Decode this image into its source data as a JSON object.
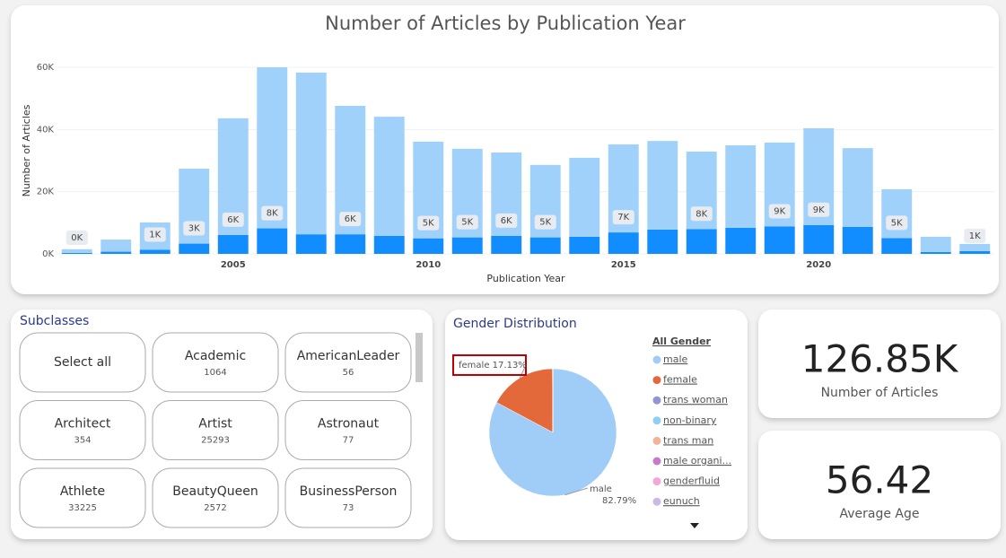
{
  "chart_data": [
    {
      "type": "bar",
      "title": "Number of Articles by Publication Year",
      "x_label": "Publication Year",
      "y_label": "Number of Articles",
      "x": [
        2001,
        2002,
        2003,
        2004,
        2005,
        2006,
        2007,
        2008,
        2009,
        2010,
        2011,
        2012,
        2013,
        2014,
        2015,
        2016,
        2017,
        2018,
        2019,
        2020,
        2021,
        2022,
        2023,
        2024
      ],
      "xlim": [
        2000.5,
        2024.5
      ],
      "xticks": [
        2005,
        2010,
        2015,
        2020
      ],
      "ylim": [
        0,
        61000
      ],
      "yticks": [
        {
          "value": 0,
          "label": "0K"
        },
        {
          "value": 20000,
          "label": "20K"
        },
        {
          "value": 40000,
          "label": "40K"
        },
        {
          "value": 60000,
          "label": "60K"
        }
      ],
      "grid": true,
      "stacked": true,
      "series": [
        {
          "color": "#118dff",
          "values": [
            300,
            700,
            1300,
            3300,
            6100,
            8200,
            6300,
            6300,
            5800,
            5000,
            5300,
            5800,
            5300,
            5500,
            6900,
            7800,
            8000,
            8400,
            8800,
            9300,
            8700,
            5100,
            600,
            900
          ],
          "value_labels": [
            "0K",
            null,
            "1K",
            "3K",
            "6K",
            "8K",
            null,
            "6K",
            null,
            "5K",
            "5K",
            "6K",
            "5K",
            null,
            "7K",
            null,
            "8K",
            null,
            "9K",
            "9K",
            null,
            "5K",
            null,
            "1K"
          ]
        },
        {
          "color": "#a0d1fb",
          "values": [
            1200,
            3900,
            8800,
            24100,
            37500,
            51800,
            52000,
            41300,
            38300,
            31100,
            28500,
            26800,
            23300,
            25400,
            28300,
            28500,
            24900,
            26500,
            27000,
            31100,
            25300,
            15700,
            4900,
            2300
          ]
        }
      ]
    },
    {
      "type": "pie",
      "title": "Gender Distribution",
      "legend_title": "All Gender",
      "categories": [
        "male",
        "female",
        "trans woman",
        "non-binary",
        "trans man",
        "male organi...",
        "genderfluid",
        "eunuch"
      ],
      "values": [
        82.79,
        17.13,
        0.02,
        0.02,
        0.01,
        0.01,
        0.01,
        0.01
      ],
      "value_labels": [
        "82.79%",
        "17.13%",
        null,
        null,
        null,
        null,
        null,
        null
      ],
      "colors": [
        "#9fcdf7",
        "#e3683a",
        "#8e96d4",
        "#8fd0f2",
        "#f2b39a",
        "#c77bc7",
        "#f4a6d8",
        "#c9b8e8"
      ]
    }
  ],
  "slicer": {
    "title": "Subclasses",
    "items": [
      {
        "label": "Select all"
      },
      {
        "label": "Academic",
        "count": 1064
      },
      {
        "label": "AmericanLeader",
        "count": 56
      },
      {
        "label": "Architect",
        "count": 354
      },
      {
        "label": "Artist",
        "count": 25293
      },
      {
        "label": "Astronaut",
        "count": 77
      },
      {
        "label": "Athlete",
        "count": 33225
      },
      {
        "label": "BeautyQueen",
        "count": 2572
      },
      {
        "label": "BusinessPerson",
        "count": 73
      }
    ]
  },
  "cards": [
    {
      "value": "126.85K",
      "label": "Number of Articles"
    },
    {
      "value": "56.42",
      "label": "Average Age"
    }
  ]
}
